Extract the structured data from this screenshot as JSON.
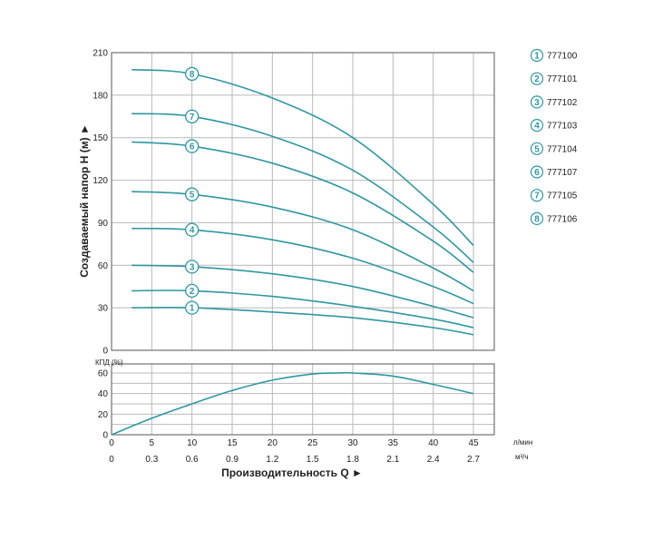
{
  "colors": {
    "curve": "#2e97a3",
    "grid": "#b9b9b9",
    "frame": "#555555",
    "text": "#222222",
    "background": "#ffffff"
  },
  "chart_data": [
    {
      "type": "line",
      "ylabel": "Создаваемый напор H (м) ►",
      "ylim": [
        0,
        210
      ],
      "yticks": [
        0,
        30,
        60,
        90,
        120,
        150,
        180,
        210
      ],
      "xlim": [
        0,
        45
      ],
      "xticks": [
        0,
        5,
        10,
        15,
        20,
        25,
        30,
        35,
        40,
        45
      ],
      "grid": true,
      "legend_placement": "right",
      "series": [
        {
          "name": "777100",
          "marker": "1",
          "x": [
            2.5,
            10,
            20,
            30,
            40,
            45
          ],
          "values": [
            30,
            30,
            27,
            23,
            16,
            11
          ]
        },
        {
          "name": "777101",
          "marker": "2",
          "x": [
            2.5,
            10,
            20,
            30,
            40,
            45
          ],
          "values": [
            42,
            42,
            38,
            31,
            22,
            16
          ]
        },
        {
          "name": "777102",
          "marker": "3",
          "x": [
            2.5,
            10,
            20,
            30,
            40,
            45
          ],
          "values": [
            60,
            59,
            54,
            45,
            31,
            23
          ]
        },
        {
          "name": "777103",
          "marker": "4",
          "x": [
            2.5,
            10,
            20,
            30,
            40,
            45
          ],
          "values": [
            86,
            85,
            78,
            65,
            45,
            33
          ]
        },
        {
          "name": "777104",
          "marker": "5",
          "x": [
            2.5,
            10,
            20,
            30,
            40,
            45
          ],
          "values": [
            112,
            110,
            101,
            85,
            58,
            42
          ]
        },
        {
          "name": "777107",
          "marker": "6",
          "x": [
            2.5,
            10,
            20,
            30,
            40,
            45
          ],
          "values": [
            147,
            144,
            132,
            111,
            77,
            55
          ]
        },
        {
          "name": "777105",
          "marker": "7",
          "x": [
            2.5,
            10,
            20,
            30,
            40,
            45
          ],
          "values": [
            167,
            165,
            151,
            127,
            87,
            62
          ]
        },
        {
          "name": "777106",
          "marker": "8",
          "x": [
            2.5,
            10,
            20,
            30,
            40,
            45
          ],
          "values": [
            198,
            195,
            178,
            150,
            103,
            74
          ]
        }
      ],
      "marker_x": 10
    },
    {
      "type": "line",
      "ylabel": "КПД (%)",
      "ylim": [
        0,
        70
      ],
      "yticks": [
        0,
        20,
        40,
        60
      ],
      "xlim": [
        0,
        45
      ],
      "xticks": [
        0,
        5,
        10,
        15,
        20,
        25,
        30,
        35,
        40,
        45
      ],
      "xtick_labels_q_lpm": [
        "0",
        "5",
        "10",
        "15",
        "20",
        "25",
        "30",
        "35",
        "40",
        "45"
      ],
      "xtick_labels_q_m3h": [
        "0",
        "0.3",
        "0.6",
        "0.9",
        "1.2",
        "1.5",
        "1.8",
        "2.1",
        "2.4",
        "2.7"
      ],
      "unit_lpm": "л/мин",
      "unit_m3h": "м³/ч",
      "xlabel": "Производительность Q ►",
      "grid": true,
      "series": [
        {
          "name": "",
          "x": [
            0,
            5,
            10,
            15,
            20,
            25,
            28,
            30,
            35,
            40,
            45
          ],
          "values": [
            0,
            16,
            30,
            43,
            53,
            59,
            60,
            60,
            57,
            49,
            40
          ]
        }
      ]
    }
  ],
  "legend": [
    {
      "num": "1",
      "label": "777100"
    },
    {
      "num": "2",
      "label": "777101"
    },
    {
      "num": "3",
      "label": "777102"
    },
    {
      "num": "4",
      "label": "777103"
    },
    {
      "num": "5",
      "label": "777104"
    },
    {
      "num": "6",
      "label": "777107"
    },
    {
      "num": "7",
      "label": "777105"
    },
    {
      "num": "8",
      "label": "777106"
    }
  ]
}
